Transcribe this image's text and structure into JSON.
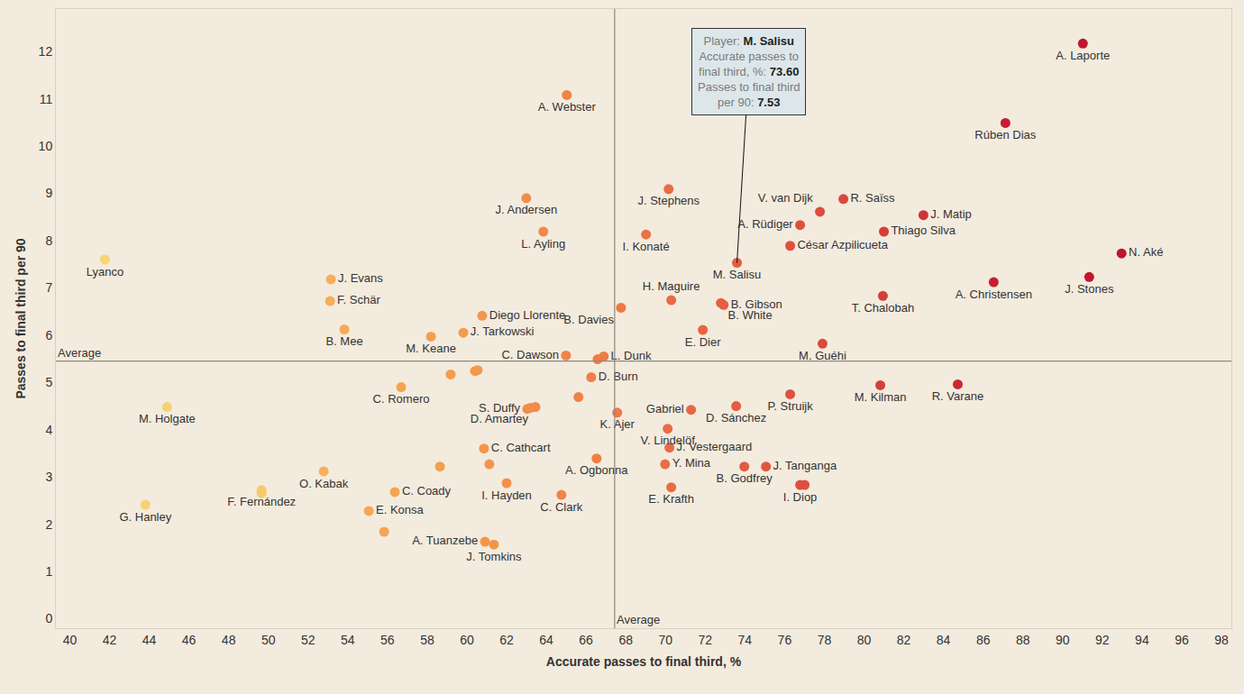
{
  "chart_data": {
    "type": "scatter",
    "x_label": "Accurate passes to final third, %",
    "y_label": "Passes to final third per 90",
    "xlim": [
      39.3,
      98.5
    ],
    "ylim": [
      -0.2,
      12.9
    ],
    "xticks": [
      40,
      42,
      44,
      46,
      48,
      50,
      52,
      54,
      56,
      58,
      60,
      62,
      64,
      66,
      68,
      70,
      72,
      74,
      76,
      78,
      80,
      82,
      84,
      86,
      88,
      90,
      92,
      94,
      96,
      98
    ],
    "yticks": [
      0,
      1,
      2,
      3,
      4,
      5,
      6,
      7,
      8,
      9,
      10,
      11,
      12
    ],
    "grid": false,
    "marker": "circle",
    "x": [
      91.02,
      87.12,
      65.03,
      70.16,
      77.78,
      78.96,
      82.99,
      76.78,
      81.0,
      76.28,
      62.99,
      63.85,
      69.02,
      73.6,
      92.97,
      91.34,
      86.53,
      80.95,
      41.77,
      53.15,
      53.11,
      53.83,
      60.77,
      59.82,
      58.19,
      70.29,
      67.76,
      72.79,
      72.93,
      71.88,
      77.91,
      64.99,
      66.58,
      66.89,
      66.26,
      56.69,
      63.04,
      63.45,
      67.57,
      71.29,
      73.56,
      76.28,
      80.82,
      84.72,
      70.11,
      70.2,
      69.98,
      73.97,
      75.06,
      76.78,
      77.01,
      70.29,
      60.86,
      66.53,
      62.0,
      64.76,
      52.79,
      56.37,
      55.06,
      60.91,
      61.36,
      44.9,
      43.81,
      49.66,
      49.66,
      58.64,
      59.18,
      60.41,
      60.54,
      65.62,
      61.13,
      55.83,
      63.2
    ],
    "values": [
      12.17,
      10.49,
      11.08,
      9.09,
      8.61,
      8.88,
      8.54,
      8.33,
      8.19,
      7.89,
      8.9,
      8.19,
      8.13,
      7.53,
      7.73,
      7.23,
      7.12,
      6.83,
      7.6,
      7.18,
      6.72,
      6.12,
      6.41,
      6.05,
      5.97,
      6.74,
      6.58,
      6.68,
      6.64,
      6.11,
      5.82,
      5.57,
      5.49,
      5.55,
      5.11,
      4.9,
      4.44,
      4.48,
      4.36,
      4.42,
      4.5,
      4.75,
      4.94,
      4.96,
      4.02,
      3.62,
      3.27,
      3.22,
      3.22,
      2.83,
      2.83,
      2.78,
      3.6,
      3.39,
      2.87,
      2.62,
      3.12,
      2.68,
      2.28,
      1.63,
      1.57,
      4.48,
      2.41,
      2.72,
      2.66,
      3.22,
      5.17,
      5.24,
      5.26,
      4.69,
      3.27,
      1.84,
      4.46
    ],
    "labels": [
      "A. Laporte",
      "Rúben Dias",
      "A. Webster",
      "J. Stephens",
      "V. van Dijk",
      "R. Saïss",
      "J. Matip",
      "A. Rüdiger",
      "Thiago Silva",
      "César Azpilicueta",
      "J. Andersen",
      "L. Ayling",
      "I. Konaté",
      "M. Salisu",
      "N. Aké",
      "J. Stones",
      "A. Christensen",
      "T. Chalobah",
      "Lyanco",
      "J. Evans",
      "F. Schär",
      "B. Mee",
      "Diego Llorente",
      "J. Tarkowski",
      "M. Keane",
      "H. Maguire",
      "B. Davies",
      "B. White",
      "B. Gibson",
      "E. Dier",
      "M. Guéhi",
      "C. Dawson",
      null,
      "L. Dunk",
      "D. Burn",
      "C. Romero",
      "S. Duffy",
      "D. Amartey",
      "K. Ajer",
      "Gabriel",
      "D. Sánchez",
      "P. Struijk",
      "M. Kilman",
      "R. Varane",
      "V. Lindelöf",
      "J. Vestergaard",
      "Y. Mina",
      "B. Godfrey",
      "J. Tanganga",
      "I. Diop",
      null,
      "E. Krafth",
      "C. Cathcart",
      "A. Ogbonna",
      "I. Hayden",
      "C. Clark",
      "O. Kabak",
      "C. Coady",
      "E. Konsa",
      "A. Tuanzebe",
      "J. Tomkins",
      "M. Holgate",
      "G. Hanley",
      "F. Fernández",
      null,
      null,
      null,
      null,
      null,
      null,
      null,
      null,
      null
    ],
    "averages": {
      "label": "Average",
      "x": 67.44,
      "y": 5.45
    },
    "tooltip": {
      "rows": [
        {
          "label": "Player:",
          "value": "M. Salisu"
        },
        {
          "label": "Accurate passes to final third, %:",
          "value": "73.60"
        },
        {
          "label": "Passes to final third per 90:",
          "value": "7.53"
        }
      ]
    }
  }
}
